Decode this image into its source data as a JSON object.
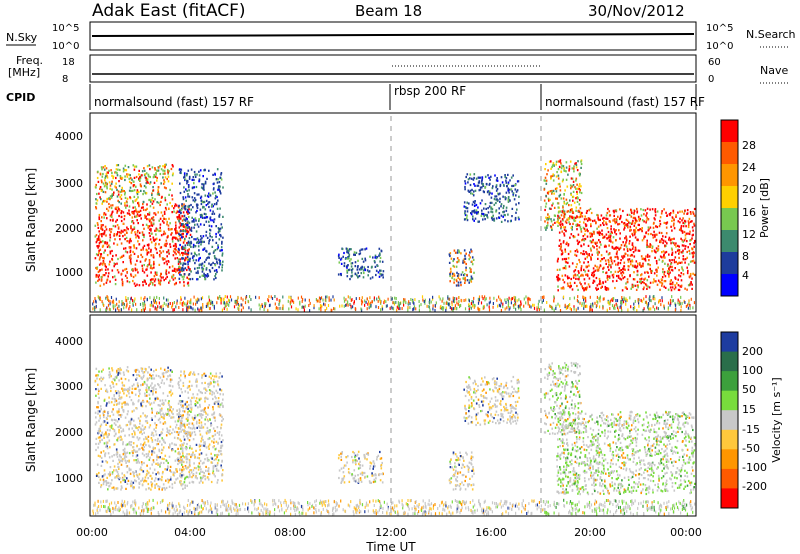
{
  "header": {
    "station": "Adak East (fitACF)",
    "beam": "Beam 18",
    "date": "30/Nov/2012"
  },
  "noise_panel": {
    "left_label": "N.Sky",
    "right_label": "N.Search",
    "left_ticks": [
      "10^5",
      "10^0"
    ],
    "right_ticks": [
      "10^5",
      "10^0"
    ]
  },
  "freq_panel": {
    "left_label_line1": "Freq.",
    "left_label_line2": "[MHz]",
    "left_ticks": [
      "18",
      "8"
    ],
    "right_label": "Nave",
    "right_ticks": [
      "60",
      "0"
    ]
  },
  "cpid": {
    "label": "CPID",
    "segments": [
      {
        "name": "normalsound (fast) 157 RF",
        "start_hour": 0,
        "end_hour": 12
      },
      {
        "name": "rbsp 200 RF",
        "start_hour": 12,
        "end_hour": 18
      },
      {
        "name": "normalsound (fast) 157 RF",
        "start_hour": 18,
        "end_hour": 24
      }
    ]
  },
  "power_panel": {
    "ylabel": "Slant Range [km]",
    "yticks": [
      "4000",
      "3000",
      "2000",
      "1000"
    ],
    "cbar_label": "Power [dB]",
    "cbar_ticks": [
      "28",
      "24",
      "20",
      "16",
      "12",
      "8",
      "4"
    ],
    "cbar_colors": [
      "#ff0000",
      "#ff5a00",
      "#ff9600",
      "#ffd000",
      "#78c850",
      "#3c8a6e",
      "#1e3c9c",
      "#0000ff"
    ]
  },
  "velocity_panel": {
    "ylabel": "Slant Range [km]",
    "yticks": [
      "4000",
      "3000",
      "2000",
      "1000"
    ],
    "cbar_label": "Velocity [m s⁻¹]",
    "cbar_ticks": [
      "200",
      "100",
      "50",
      "15",
      "-15",
      "-50",
      "-100",
      "-200"
    ],
    "cbar_colors": [
      "#1e3ca0",
      "#2a6e4a",
      "#3ca03c",
      "#78dc3c",
      "#c8c8c8",
      "#ffc83c",
      "#ff9600",
      "#ff5a00",
      "#ff0000"
    ]
  },
  "xaxis": {
    "ticks": [
      "00:00",
      "04:00",
      "08:00",
      "12:00",
      "16:00",
      "20:00",
      "00:00"
    ],
    "label": "Time UT"
  },
  "chart_data": {
    "type": "heatmap",
    "x_range_hours": [
      0,
      24
    ],
    "y_range_km": [
      180,
      4600
    ],
    "power_regions": [
      {
        "t0": 0.1,
        "t1": 3.9,
        "r0": 750,
        "r1": 2600,
        "level": "high"
      },
      {
        "t0": 0.1,
        "t1": 3.2,
        "r0": 2600,
        "r1": 3500,
        "level": "mixed"
      },
      {
        "t0": 3.4,
        "t1": 5.2,
        "r0": 900,
        "r1": 3400,
        "level": "low"
      },
      {
        "t0": 9.8,
        "t1": 11.6,
        "r0": 900,
        "r1": 1600,
        "level": "low"
      },
      {
        "t0": 14.2,
        "t1": 15.2,
        "r0": 750,
        "r1": 1600,
        "level": "low-mixed"
      },
      {
        "t0": 14.8,
        "t1": 17.0,
        "r0": 2200,
        "r1": 3300,
        "level": "low"
      },
      {
        "t0": 18.0,
        "t1": 19.5,
        "r0": 2000,
        "r1": 3600,
        "level": "mixed"
      },
      {
        "t0": 18.5,
        "t1": 24.0,
        "r0": 650,
        "r1": 2500,
        "level": "high"
      }
    ]
  }
}
